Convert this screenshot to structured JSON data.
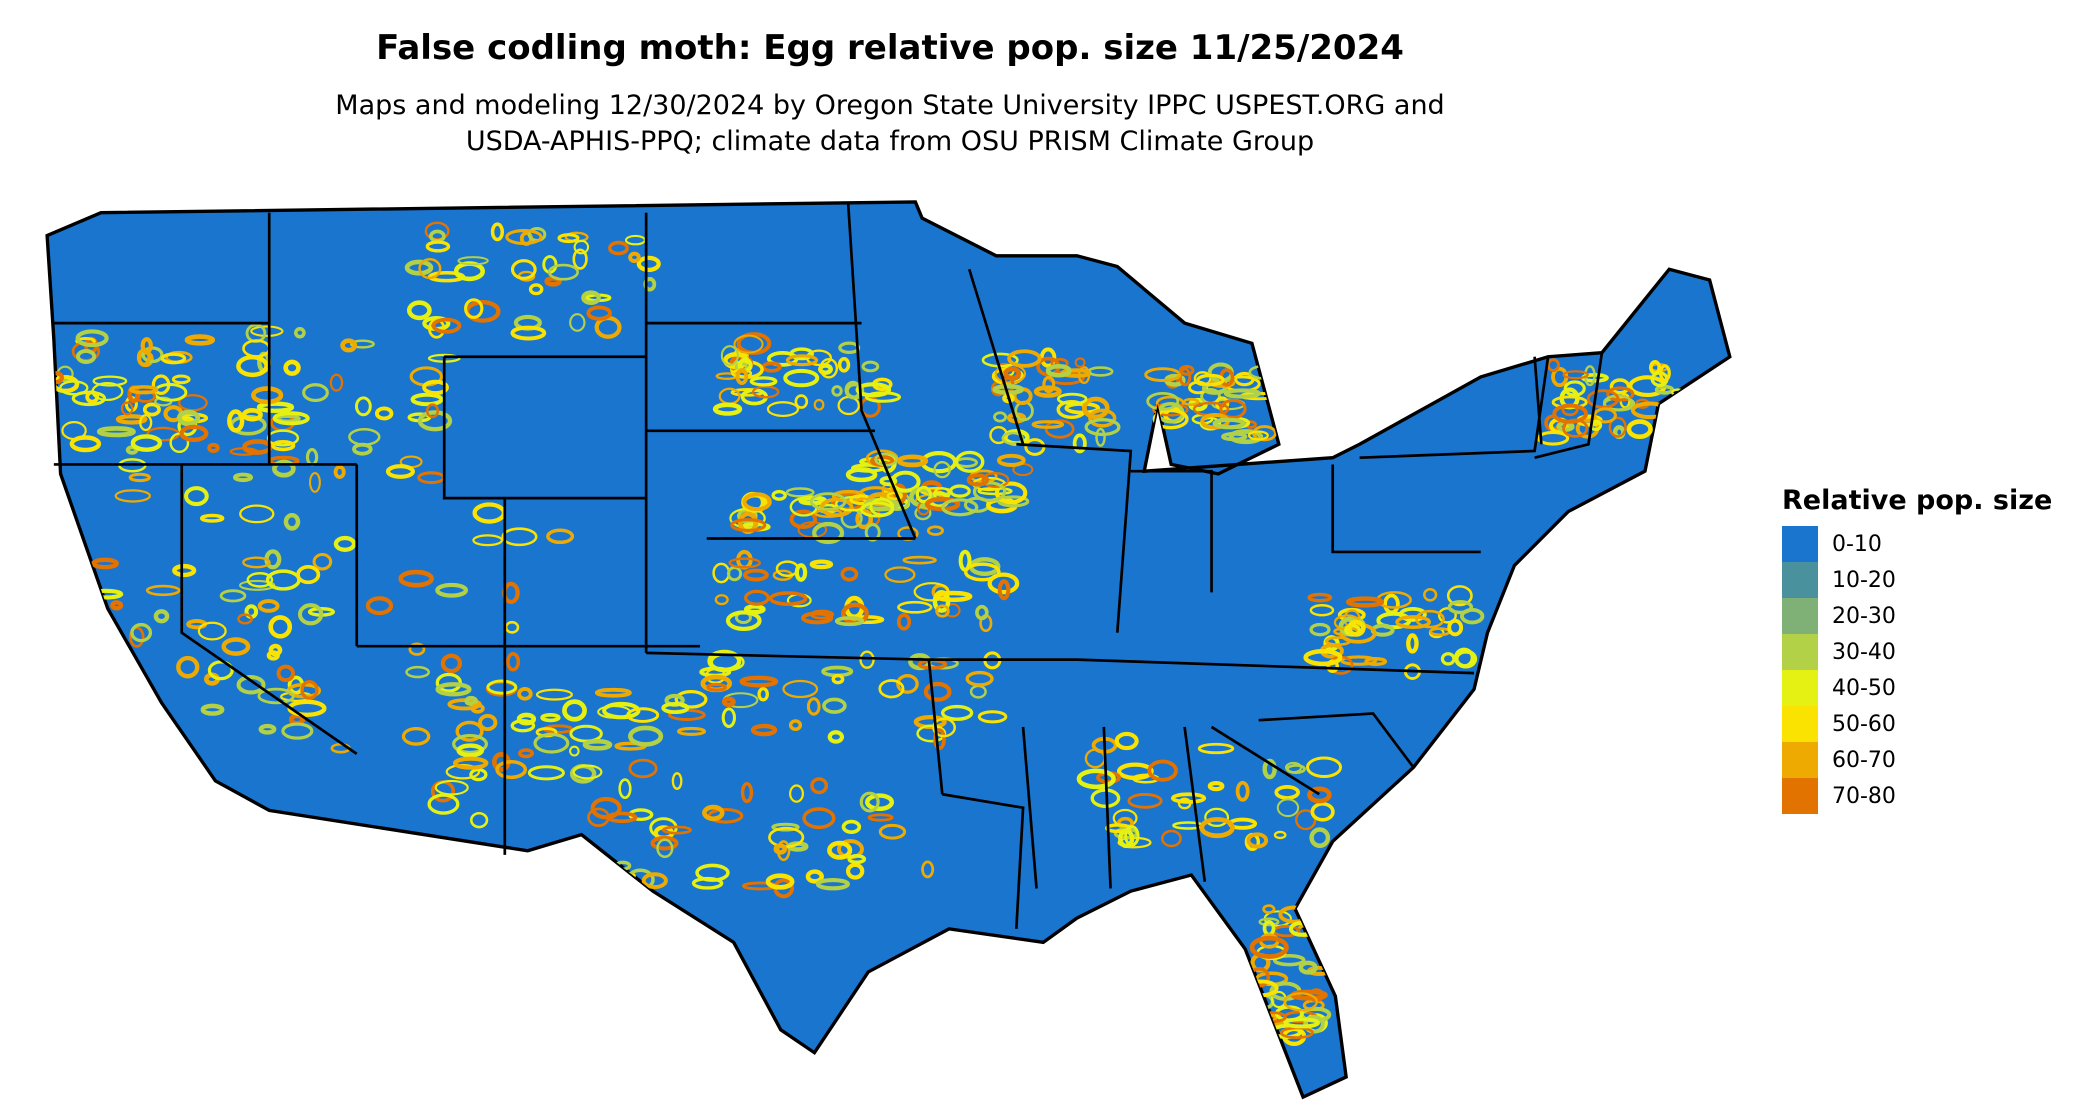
{
  "title": "False codling moth: Egg relative pop. size 11/25/2024",
  "subtitle_line1": "Maps and modeling 12/30/2024 by Oregon State University IPPC USPEST.ORG and",
  "subtitle_line2": "USDA-APHIS-PPQ; climate data from OSU PRISM Climate Group",
  "chart_data": {
    "type": "heatmap",
    "region": "Contiguous United States",
    "legend": {
      "title": "Relative pop. size",
      "placement": "right",
      "classes": [
        {
          "label": "0-10",
          "color": "#1a75cf"
        },
        {
          "label": "10-20",
          "color": "#4a919e"
        },
        {
          "label": "20-30",
          "color": "#7fb076"
        },
        {
          "label": "30-40",
          "color": "#b3d147"
        },
        {
          "label": "40-50",
          "color": "#e5f013"
        },
        {
          "label": "50-60",
          "color": "#fae300"
        },
        {
          "label": "60-70",
          "color": "#eeaa00"
        },
        {
          "label": "70-80",
          "color": "#e37300"
        }
      ]
    }
  }
}
